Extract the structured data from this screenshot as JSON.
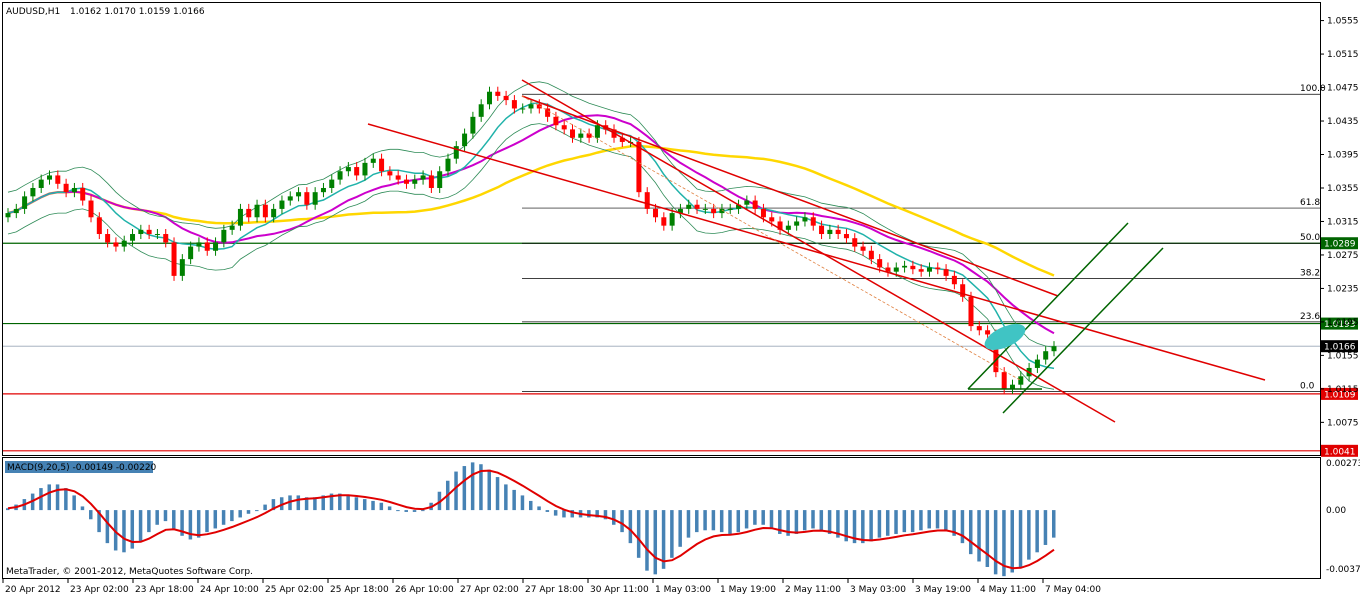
{
  "header": {
    "symbol_label": "AUDUSD,H1",
    "ohlc_label": "1.0162 1.0170 1.0159 1.0166"
  },
  "macd": {
    "label": "MACD(9,20,5) -0.00149 -0.00220",
    "axis_labels": [
      "0.00273",
      "0.00",
      "-0.0037"
    ]
  },
  "footer": {
    "copyright": "MetaTrader, © 2001-2012, MetaQuotes Software Corp."
  },
  "colors": {
    "background": "#ffffff",
    "bull_candle": "#008000",
    "bear_candle": "#ff0000",
    "ma_yellow": "#ffd700",
    "ma_magenta": "#cc00cc",
    "ma_teal": "#20b2aa",
    "bollinger": "#2e8b57",
    "support_green": "#006400",
    "resistance_red": "#e00000",
    "channel_red": "#e00000",
    "channel_green": "#006400",
    "macd_hist": "#4682b4",
    "macd_signal": "#e00000",
    "label_bg_green": "#006400",
    "label_bg_red": "#e00000",
    "highlight_ellipse": "#40c4c4"
  },
  "chart_data": {
    "type": "candlestick",
    "symbol": "AUDUSD",
    "timeframe": "H1",
    "ylim": [
      1.0036,
      1.0576
    ],
    "y_ticks": [
      "1.0555",
      "1.0515",
      "1.0475",
      "1.0435",
      "1.0395",
      "1.0355",
      "1.0315",
      "1.0275",
      "1.0235",
      "1.0195",
      "1.0155",
      "1.0115",
      "1.0075"
    ],
    "x_ticks": [
      "20 Apr 2012",
      "23 Apr 02:00",
      "23 Apr 18:00",
      "24 Apr 10:00",
      "25 Apr 02:00",
      "25 Apr 18:00",
      "26 Apr 10:00",
      "27 Apr 02:00",
      "27 Apr 18:00",
      "30 Apr 11:00",
      "1 May 03:00",
      "1 May 19:00",
      "2 May 11:00",
      "3 May 03:00",
      "3 May 19:00",
      "4 May 11:00",
      "7 May 04:00"
    ],
    "closes": [
      1.0325,
      1.033,
      1.0345,
      1.0355,
      1.0365,
      1.037,
      1.036,
      1.035,
      1.0355,
      1.034,
      1.032,
      1.03,
      1.029,
      1.0285,
      1.0292,
      1.03,
      1.0305,
      1.03,
      1.03,
      1.029,
      1.025,
      1.027,
      1.0285,
      1.029,
      1.028,
      1.029,
      1.0305,
      1.031,
      1.033,
      1.032,
      1.0335,
      1.032,
      1.033,
      1.034,
      1.0345,
      1.035,
      1.0335,
      1.035,
      1.0355,
      1.0365,
      1.0375,
      1.038,
      1.037,
      1.0385,
      1.039,
      1.0375,
      1.037,
      1.0365,
      1.036,
      1.0365,
      1.037,
      1.0355,
      1.0375,
      1.039,
      1.0405,
      1.042,
      1.044,
      1.0455,
      1.047,
      1.0465,
      1.046,
      1.045,
      1.045,
      1.0455,
      1.045,
      1.044,
      1.043,
      1.0425,
      1.0415,
      1.042,
      1.0415,
      1.043,
      1.0425,
      1.0415,
      1.041,
      1.041,
      1.035,
      1.033,
      1.032,
      1.031,
      1.0325,
      1.033,
      1.0335,
      1.033,
      1.033,
      1.0325,
      1.033,
      1.033,
      1.0335,
      1.034,
      1.033,
      1.032,
      1.0315,
      1.0305,
      1.031,
      1.0315,
      1.032,
      1.031,
      1.03,
      1.0305,
      1.03,
      1.0295,
      1.0285,
      1.028,
      1.027,
      1.026,
      1.0255,
      1.026,
      1.0262,
      1.0258,
      1.0255,
      1.026,
      1.0258,
      1.025,
      1.024,
      1.0225,
      1.019,
      1.0185,
      1.018,
      1.0135,
      1.0115,
      1.012,
      1.013,
      1.014,
      1.015,
      1.016,
      1.0166
    ],
    "horizontal_levels": [
      {
        "label": "1.0289",
        "value": 1.0289,
        "color": "green"
      },
      {
        "label": "1.0193",
        "value": 1.0193,
        "color": "green"
      },
      {
        "label": "1.0166",
        "value": 1.0166,
        "color": "current"
      },
      {
        "label": "1.0109",
        "value": 1.0109,
        "color": "red"
      },
      {
        "label": "1.0041",
        "value": 1.0041,
        "color": "red"
      }
    ],
    "fibonacci": [
      {
        "level": "100.0",
        "value": 1.0467
      },
      {
        "level": "61.8",
        "value": 1.0331
      },
      {
        "level": "50.0",
        "value": 1.0289
      },
      {
        "level": "38.2",
        "value": 1.0247
      },
      {
        "level": "23.6",
        "value": 1.0195
      },
      {
        "level": "0.0",
        "value": 1.0112
      }
    ],
    "macd_ylim": [
      -0.0037,
      0.00273
    ],
    "macd_hist": [
      0.0001,
      0.0003,
      0.0006,
      0.0009,
      0.0012,
      0.0014,
      0.0014,
      0.0012,
      0.0008,
      0.0002,
      -0.0005,
      -0.0012,
      -0.0018,
      -0.0022,
      -0.0023,
      -0.0021,
      -0.0017,
      -0.0012,
      -0.0008,
      -0.0006,
      -0.001,
      -0.0014,
      -0.0016,
      -0.0015,
      -0.0012,
      -0.001,
      -0.0008,
      -0.0006,
      -0.0004,
      -0.0002,
      0.0,
      0.0003,
      0.0006,
      0.0007,
      0.0008,
      0.0008,
      0.0007,
      0.0007,
      0.0008,
      0.0009,
      0.0009,
      0.0008,
      0.0007,
      0.0006,
      0.0005,
      0.0004,
      0.0002,
      0.0,
      -0.0001,
      -0.0001,
      0.0,
      0.0004,
      0.001,
      0.0016,
      0.0021,
      0.0024,
      0.0026,
      0.0025,
      0.0022,
      0.0018,
      0.0014,
      0.0011,
      0.0008,
      0.0005,
      0.0002,
      -0.0001,
      -0.0003,
      -0.0004,
      -0.0004,
      -0.0004,
      -0.0004,
      -0.0004,
      -0.0005,
      -0.0008,
      -0.0012,
      -0.0018,
      -0.0026,
      -0.0033,
      -0.0035,
      -0.0032,
      -0.0026,
      -0.002,
      -0.0015,
      -0.0012,
      -0.0011,
      -0.0011,
      -0.0012,
      -0.0013,
      -0.0012,
      -0.001,
      -0.0008,
      -0.0008,
      -0.001,
      -0.0013,
      -0.0014,
      -0.0013,
      -0.0011,
      -0.001,
      -0.0011,
      -0.0013,
      -0.0015,
      -0.0017,
      -0.0018,
      -0.0018,
      -0.0017,
      -0.0015,
      -0.0014,
      -0.0013,
      -0.0012,
      -0.0012,
      -0.0011,
      -0.001,
      -0.001,
      -0.0011,
      -0.0014,
      -0.0018,
      -0.0024,
      -0.0028,
      -0.0031,
      -0.0035,
      -0.0036,
      -0.0034,
      -0.0031,
      -0.0027,
      -0.0023,
      -0.0019,
      -0.0015
    ]
  }
}
